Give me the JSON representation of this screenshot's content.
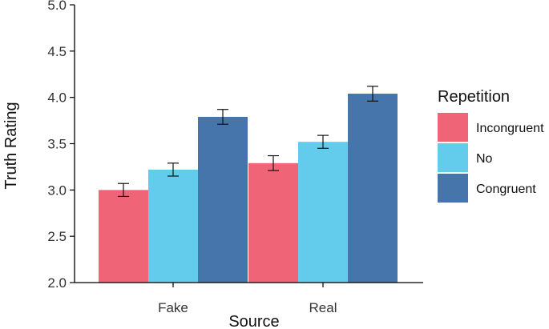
{
  "chart_data": {
    "type": "bar",
    "xlabel": "Source",
    "ylabel": "Truth Rating",
    "ylim": [
      2.0,
      5.0
    ],
    "yticks": [
      "2.0",
      "2.5",
      "3.0",
      "3.5",
      "4.0",
      "4.5",
      "5.0"
    ],
    "categories": [
      "Fake",
      "Real"
    ],
    "legend_title": "Repetition",
    "legend_position": "right",
    "series": [
      {
        "name": "Incongruent",
        "color": "#EF6577",
        "values": [
          3.0,
          3.29
        ],
        "errors": [
          0.07,
          0.08
        ]
      },
      {
        "name": "No",
        "color": "#63CBEC",
        "values": [
          3.22,
          3.52
        ],
        "errors": [
          0.07,
          0.07
        ]
      },
      {
        "name": "Congruent",
        "color": "#4575AB",
        "values": [
          3.79,
          4.04
        ],
        "errors": [
          0.08,
          0.08
        ]
      }
    ]
  }
}
